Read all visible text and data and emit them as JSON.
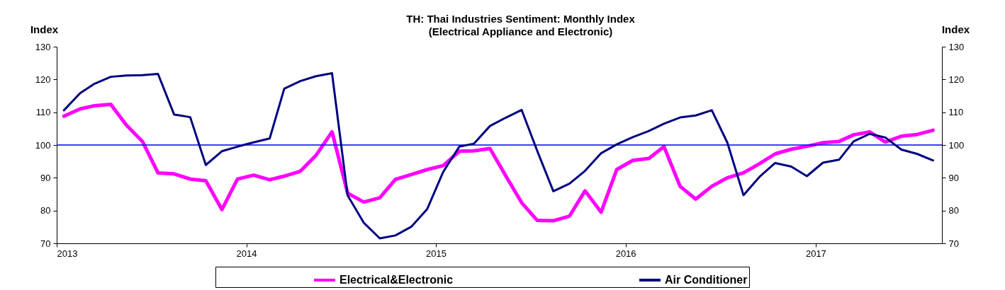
{
  "chart_data": {
    "type": "line",
    "title": "TH: Thai Industries Sentiment: Monthly Index",
    "subtitle": "(Electrical Appliance and Electronic)",
    "ylabel": "Index",
    "y2label": "Index",
    "x": [
      "2013-01-15",
      "2013-02-15",
      "2013-03-15",
      "2013-04-15",
      "2013-05-15",
      "2013-06-15",
      "2013-07-15",
      "2013-08-15",
      "2013-09-15",
      "2013-10-15",
      "2013-11-15",
      "2013-12-15",
      "2014-01-15",
      "2014-02-15",
      "2014-03-15",
      "2014-04-15",
      "2014-05-15",
      "2014-06-15",
      "2014-07-15",
      "2014-08-15",
      "2014-09-15",
      "2014-10-15",
      "2014-11-15",
      "2014-12-15",
      "2015-01-15",
      "2015-02-15",
      "2015-03-15",
      "2015-04-15",
      "2015-05-15",
      "2015-06-15",
      "2015-07-15",
      "2015-08-15",
      "2015-09-15",
      "2015-10-15",
      "2015-11-15",
      "2015-12-15",
      "2016-01-15",
      "2016-02-15",
      "2016-03-15",
      "2016-04-15",
      "2016-05-15",
      "2016-06-15",
      "2016-07-15",
      "2016-08-15",
      "2016-09-15",
      "2016-10-15",
      "2016-11-15",
      "2016-12-15",
      "2017-01-15",
      "2017-02-15",
      "2017-03-15",
      "2017-04-15",
      "2017-05-15",
      "2017-06-15",
      "2017-07-15",
      "2017-08-15"
    ],
    "series": [
      {
        "name": "Electrical&Electronic",
        "color": "#ff00ff",
        "values": [
          108.8,
          111.0,
          112.0,
          112.4,
          106.1,
          101.1,
          91.5,
          91.2,
          89.6,
          89.1,
          80.3,
          89.6,
          90.8,
          89.4,
          90.5,
          92.0,
          96.8,
          104.0,
          85.3,
          82.6,
          83.9,
          89.5,
          91.0,
          92.5,
          93.7,
          98.1,
          98.2,
          98.9,
          90.7,
          82.4,
          77.0,
          76.9,
          78.3,
          86.0,
          79.5,
          92.5,
          95.3,
          95.9,
          99.5,
          87.4,
          83.5,
          87.4,
          90.0,
          91.5,
          94.3,
          97.3,
          98.7,
          99.6,
          100.7,
          101.1,
          103.1,
          104.0,
          100.9,
          102.7,
          103.2,
          104.5
        ]
      },
      {
        "name": "Air Conditioner",
        "color": "#000080",
        "values": [
          110.6,
          115.8,
          118.7,
          120.8,
          121.2,
          121.3,
          121.7,
          109.3,
          108.5,
          93.9,
          98.1,
          99.5,
          100.8,
          102.0,
          117.2,
          119.5,
          121.0,
          121.9,
          84.6,
          76.3,
          71.5,
          72.4,
          75.1,
          80.4,
          91.8,
          99.5,
          100.4,
          105.8,
          108.3,
          110.7,
          98.2,
          85.9,
          88.2,
          92.1,
          97.5,
          100.2,
          102.4,
          104.3,
          106.5,
          108.4,
          109.0,
          110.6,
          100.7,
          84.7,
          90.3,
          94.5,
          93.4,
          90.5,
          94.6,
          95.5,
          101.1,
          103.4,
          102.3,
          98.6,
          97.3,
          95.3
        ]
      }
    ],
    "xlim": [
      "2013-01-01",
      "2017-09-01"
    ],
    "xticks": [
      "2013",
      "2014",
      "2015",
      "2016",
      "2017"
    ],
    "ylim": [
      70,
      130
    ],
    "yticks": [
      70,
      80,
      90,
      100,
      110,
      120,
      130
    ],
    "y2lim": [
      70,
      130
    ],
    "y2ticks": [
      70,
      80,
      90,
      100,
      110,
      120,
      130
    ],
    "ref_lines": [
      {
        "axis": "y",
        "value": 100,
        "color": "#0000ff"
      }
    ],
    "legend": "bottom"
  }
}
